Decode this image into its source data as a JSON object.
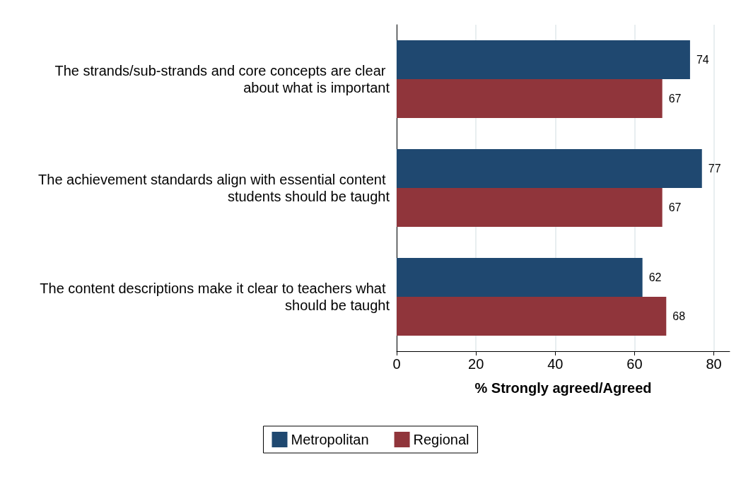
{
  "chart_data": {
    "type": "bar",
    "orientation": "horizontal",
    "xlabel": "% Strongly agreed/Agreed",
    "categories": [
      "The strands/sub-strands and core concepts are clear about what is important",
      "The achievement standards align with essential content students should be taught",
      "The content descriptions make it clear to teachers what should be taught"
    ],
    "series": [
      {
        "name": "Metropolitan",
        "color": "#1f4870",
        "values": [
          74,
          77,
          62
        ]
      },
      {
        "name": "Regional",
        "color": "#90353b",
        "values": [
          67,
          67,
          68
        ]
      }
    ],
    "xlim": [
      0,
      84
    ],
    "xticks": [
      0,
      20,
      40,
      60,
      80
    ],
    "grid": "x",
    "data_labels": true,
    "legend": "bottom"
  }
}
